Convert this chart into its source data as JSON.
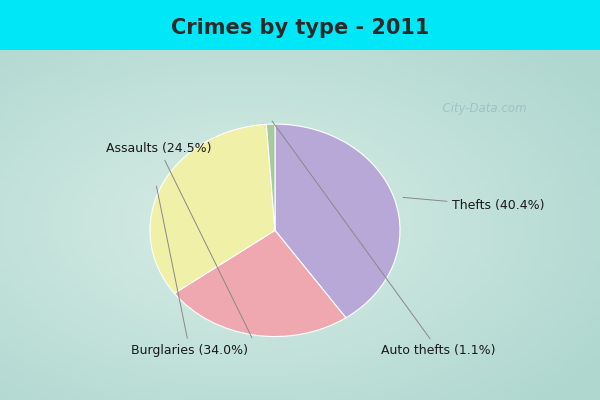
{
  "title": "Crimes by type - 2011",
  "slices": [
    {
      "label": "Thefts (40.4%)",
      "value": 40.4,
      "color": "#b8a8d8"
    },
    {
      "label": "Assaults (24.5%)",
      "value": 24.5,
      "color": "#f0a8b0"
    },
    {
      "label": "Burglaries (34.0%)",
      "value": 34.0,
      "color": "#f0f0a8"
    },
    {
      "label": "Auto thefts (1.1%)",
      "value": 1.1,
      "color": "#a8c8a0"
    }
  ],
  "bg_cyan": "#00e8f8",
  "bg_inner_center": "#d8ede8",
  "bg_inner_edge": "#b8e0d8",
  "title_fontsize": 15,
  "title_color": "#2a2a2a",
  "label_fontsize": 9,
  "watermark_text": "  City-Data.com",
  "watermark_color": "#98c0c0",
  "title_bar_height": 0.11
}
